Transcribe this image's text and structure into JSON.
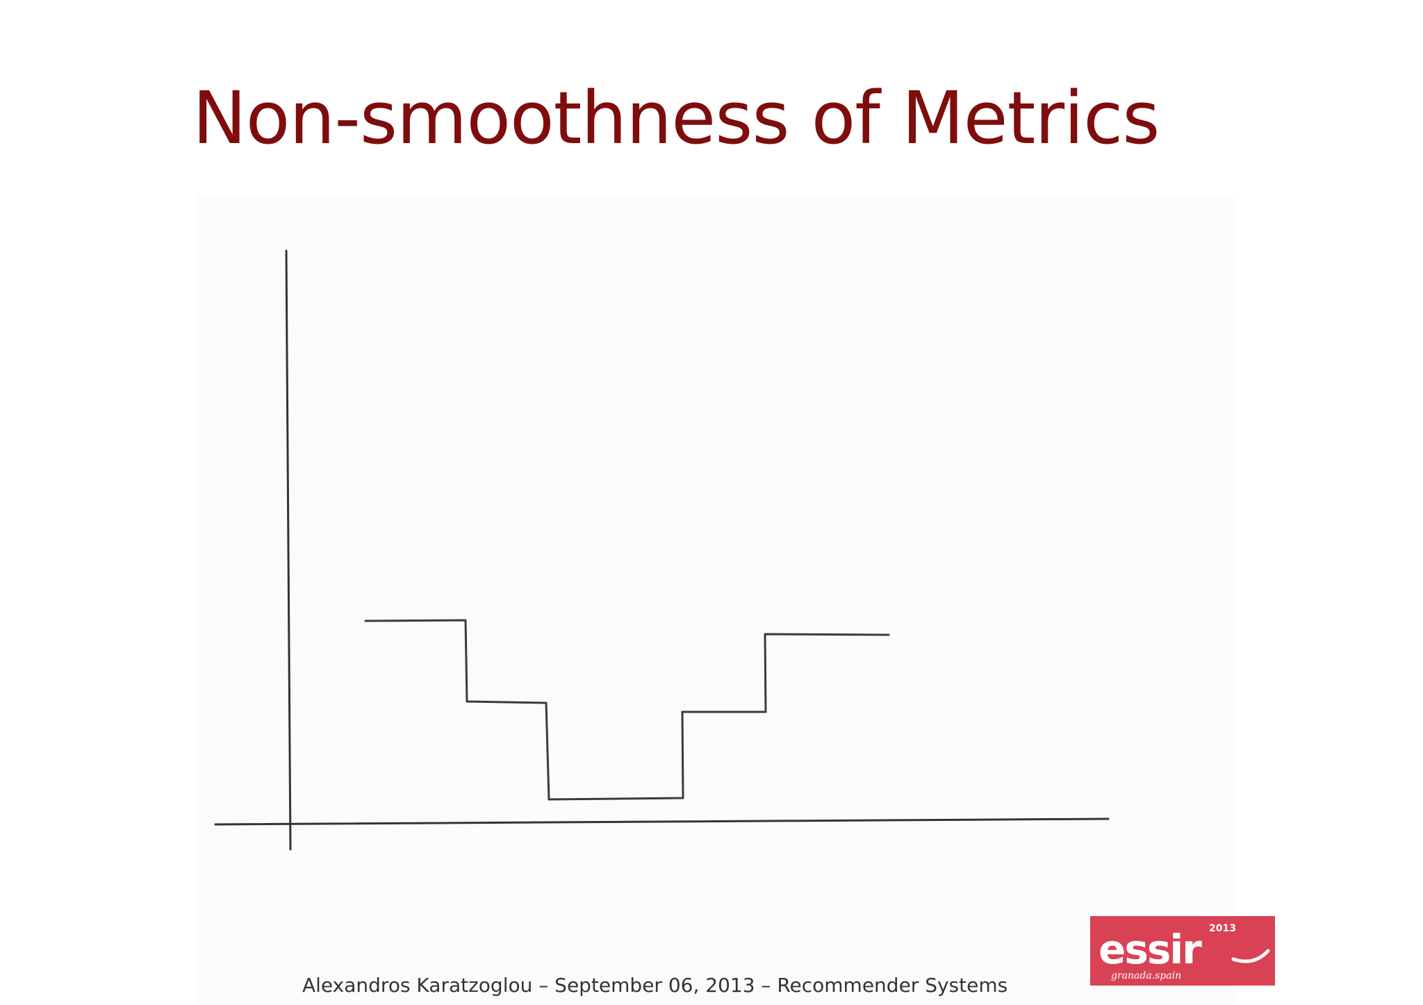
{
  "slide": {
    "title": "Non-smoothness of Metrics",
    "footer": "Alexandros Karatzoglou – September 06, 2013 – Recommender Systems"
  },
  "figure": {
    "kind": "hand-drawn step function",
    "line_color": "#333333",
    "step_levels_relative": [
      0.74,
      0.4,
      0.0,
      0.36,
      0.79
    ]
  },
  "logo": {
    "text": "essir",
    "year": "2013",
    "tagline": "granada.spain",
    "background_color": "#d94254",
    "text_color": "#ffffff"
  },
  "colors": {
    "title": "#7f0d0d",
    "footer_text": "#333333"
  }
}
